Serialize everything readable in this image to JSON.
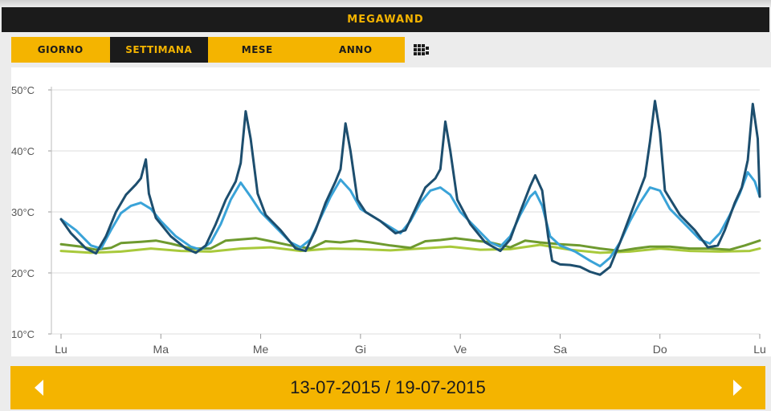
{
  "app": {
    "title": "MEGAWAND"
  },
  "tabs": [
    {
      "label": "GIORNO",
      "active": false
    },
    {
      "label": "SETTIMANA",
      "active": true
    },
    {
      "label": "MESE",
      "active": false
    },
    {
      "label": "ANNO",
      "active": false
    }
  ],
  "icons": {
    "grid": "grid-icon",
    "prev": "chevron-left-icon",
    "next": "chevron-right-icon"
  },
  "colors": {
    "accent": "#f4b400",
    "dark": "#1b1b1b"
  },
  "footer": {
    "date_range": "13-07-2015 / 19-07-2015"
  },
  "chart_data": {
    "type": "line",
    "title": "",
    "xlabel": "",
    "ylabel": "",
    "ylim": [
      10,
      50
    ],
    "yticks": [
      "10°C",
      "20°C",
      "30°C",
      "40°C",
      "50°C"
    ],
    "ytick_values": [
      10,
      20,
      30,
      40,
      50
    ],
    "xticks": [
      "Lu",
      "Ma",
      "Me",
      "Gi",
      "Ve",
      "Sa",
      "Do",
      "Lu"
    ],
    "xlim": [
      0,
      7
    ],
    "grid": true,
    "legend": "none",
    "series": [
      {
        "color": "#1d4e6e",
        "points": [
          [
            0,
            28.8
          ],
          [
            0.1,
            26.5
          ],
          [
            0.25,
            24
          ],
          [
            0.35,
            23.2
          ],
          [
            0.45,
            26
          ],
          [
            0.55,
            30
          ],
          [
            0.65,
            32.8
          ],
          [
            0.75,
            34.5
          ],
          [
            0.8,
            35.5
          ],
          [
            0.85,
            38.6
          ],
          [
            0.88,
            33
          ],
          [
            0.95,
            29
          ],
          [
            1.1,
            26
          ],
          [
            1.25,
            24
          ],
          [
            1.35,
            23.3
          ],
          [
            1.45,
            24.5
          ],
          [
            1.55,
            28
          ],
          [
            1.65,
            32
          ],
          [
            1.75,
            35
          ],
          [
            1.8,
            38
          ],
          [
            1.85,
            46.5
          ],
          [
            1.9,
            42
          ],
          [
            1.97,
            33
          ],
          [
            2.05,
            29.5
          ],
          [
            2.2,
            27
          ],
          [
            2.35,
            24
          ],
          [
            2.45,
            23.6
          ],
          [
            2.55,
            27
          ],
          [
            2.65,
            31.5
          ],
          [
            2.75,
            35
          ],
          [
            2.8,
            37
          ],
          [
            2.85,
            44.5
          ],
          [
            2.9,
            40
          ],
          [
            2.97,
            32
          ],
          [
            3.05,
            30
          ],
          [
            3.2,
            28.5
          ],
          [
            3.35,
            26.5
          ],
          [
            3.45,
            27
          ],
          [
            3.55,
            30.5
          ],
          [
            3.65,
            34
          ],
          [
            3.75,
            35.5
          ],
          [
            3.8,
            37
          ],
          [
            3.85,
            44.8
          ],
          [
            3.9,
            40
          ],
          [
            3.97,
            32
          ],
          [
            4.1,
            28
          ],
          [
            4.25,
            25
          ],
          [
            4.4,
            23.6
          ],
          [
            4.5,
            25.5
          ],
          [
            4.6,
            30
          ],
          [
            4.7,
            34.2
          ],
          [
            4.75,
            36
          ],
          [
            4.82,
            33.5
          ],
          [
            4.88,
            26
          ],
          [
            4.92,
            22
          ],
          [
            5.0,
            21.4
          ],
          [
            5.1,
            21.3
          ],
          [
            5.2,
            21.0
          ],
          [
            5.3,
            20.2
          ],
          [
            5.4,
            19.7
          ],
          [
            5.5,
            21
          ],
          [
            5.6,
            25
          ],
          [
            5.75,
            31.5
          ],
          [
            5.85,
            35.8
          ],
          [
            5.9,
            41.5
          ],
          [
            5.95,
            48.2
          ],
          [
            6.0,
            43
          ],
          [
            6.05,
            33.5
          ],
          [
            6.2,
            29.5
          ],
          [
            6.35,
            27
          ],
          [
            6.48,
            24.2
          ],
          [
            6.58,
            24.5
          ],
          [
            6.65,
            27
          ],
          [
            6.75,
            31.5
          ],
          [
            6.82,
            34
          ],
          [
            6.88,
            38.5
          ],
          [
            6.93,
            47.7
          ],
          [
            6.98,
            42
          ],
          [
            7.0,
            32.5
          ]
        ]
      },
      {
        "color": "#3aa3d8",
        "points": [
          [
            0,
            28.8
          ],
          [
            0.15,
            27
          ],
          [
            0.3,
            24.5
          ],
          [
            0.4,
            24
          ],
          [
            0.5,
            27
          ],
          [
            0.6,
            29.8
          ],
          [
            0.7,
            31
          ],
          [
            0.8,
            31.5
          ],
          [
            0.9,
            30.5
          ],
          [
            1.0,
            28.5
          ],
          [
            1.15,
            26
          ],
          [
            1.3,
            24.3
          ],
          [
            1.4,
            23.8
          ],
          [
            1.5,
            25
          ],
          [
            1.6,
            28
          ],
          [
            1.7,
            32
          ],
          [
            1.8,
            34.8
          ],
          [
            1.9,
            32.5
          ],
          [
            2.0,
            30
          ],
          [
            2.15,
            27.5
          ],
          [
            2.3,
            25
          ],
          [
            2.4,
            24.2
          ],
          [
            2.5,
            25.5
          ],
          [
            2.6,
            29
          ],
          [
            2.7,
            32.5
          ],
          [
            2.8,
            35.3
          ],
          [
            2.9,
            33.5
          ],
          [
            3.0,
            30.5
          ],
          [
            3.15,
            29
          ],
          [
            3.3,
            27.5
          ],
          [
            3.4,
            26.5
          ],
          [
            3.5,
            28.5
          ],
          [
            3.6,
            31.5
          ],
          [
            3.7,
            33.5
          ],
          [
            3.8,
            34
          ],
          [
            3.9,
            32.8
          ],
          [
            4.0,
            30
          ],
          [
            4.15,
            27.5
          ],
          [
            4.3,
            25
          ],
          [
            4.4,
            24.3
          ],
          [
            4.5,
            26
          ],
          [
            4.6,
            29.5
          ],
          [
            4.7,
            32.5
          ],
          [
            4.75,
            33.3
          ],
          [
            4.82,
            31
          ],
          [
            4.9,
            26
          ],
          [
            5.0,
            24.5
          ],
          [
            5.15,
            23.5
          ],
          [
            5.3,
            22
          ],
          [
            5.4,
            21.1
          ],
          [
            5.5,
            22.5
          ],
          [
            5.6,
            25
          ],
          [
            5.7,
            28.5
          ],
          [
            5.8,
            31.5
          ],
          [
            5.9,
            34
          ],
          [
            6.0,
            33.5
          ],
          [
            6.1,
            30.5
          ],
          [
            6.25,
            28
          ],
          [
            6.4,
            25.5
          ],
          [
            6.5,
            24.8
          ],
          [
            6.6,
            26.5
          ],
          [
            6.7,
            29.5
          ],
          [
            6.8,
            33
          ],
          [
            6.88,
            36.5
          ],
          [
            6.95,
            35
          ],
          [
            7.0,
            32.5
          ]
        ]
      },
      {
        "color": "#6e9a2f",
        "points": [
          [
            0,
            24.7
          ],
          [
            0.2,
            24.3
          ],
          [
            0.35,
            23.8
          ],
          [
            0.5,
            24.1
          ],
          [
            0.6,
            24.9
          ],
          [
            0.8,
            25.1
          ],
          [
            0.95,
            25.3
          ],
          [
            1.1,
            24.8
          ],
          [
            1.3,
            24
          ],
          [
            1.5,
            24
          ],
          [
            1.65,
            25.3
          ],
          [
            1.8,
            25.5
          ],
          [
            1.95,
            25.7
          ],
          [
            2.1,
            25.2
          ],
          [
            2.3,
            24.5
          ],
          [
            2.5,
            24
          ],
          [
            2.65,
            25.2
          ],
          [
            2.8,
            25
          ],
          [
            2.95,
            25.3
          ],
          [
            3.1,
            25
          ],
          [
            3.3,
            24.5
          ],
          [
            3.5,
            24.1
          ],
          [
            3.65,
            25.2
          ],
          [
            3.8,
            25.4
          ],
          [
            3.95,
            25.7
          ],
          [
            4.1,
            25.4
          ],
          [
            4.3,
            25
          ],
          [
            4.5,
            24.2
          ],
          [
            4.65,
            25.3
          ],
          [
            4.8,
            25
          ],
          [
            5.0,
            24.7
          ],
          [
            5.2,
            24.5
          ],
          [
            5.4,
            24
          ],
          [
            5.6,
            23.6
          ],
          [
            5.75,
            24
          ],
          [
            5.9,
            24.3
          ],
          [
            6.1,
            24.3
          ],
          [
            6.3,
            24
          ],
          [
            6.5,
            24
          ],
          [
            6.7,
            23.8
          ],
          [
            6.85,
            24.5
          ],
          [
            7.0,
            25.3
          ]
        ]
      },
      {
        "color": "#a8c93b",
        "points": [
          [
            0,
            23.6
          ],
          [
            0.3,
            23.3
          ],
          [
            0.6,
            23.5
          ],
          [
            0.9,
            24
          ],
          [
            1.2,
            23.6
          ],
          [
            1.5,
            23.5
          ],
          [
            1.8,
            24
          ],
          [
            2.1,
            24.2
          ],
          [
            2.4,
            23.6
          ],
          [
            2.7,
            24
          ],
          [
            3.0,
            23.9
          ],
          [
            3.3,
            23.7
          ],
          [
            3.6,
            24
          ],
          [
            3.9,
            24.3
          ],
          [
            4.2,
            23.8
          ],
          [
            4.5,
            23.9
          ],
          [
            4.8,
            24.6
          ],
          [
            5.1,
            23.8
          ],
          [
            5.4,
            23.3
          ],
          [
            5.7,
            23.5
          ],
          [
            6.0,
            24
          ],
          [
            6.3,
            23.6
          ],
          [
            6.6,
            23.5
          ],
          [
            6.9,
            23.6
          ],
          [
            7.0,
            24
          ]
        ]
      }
    ]
  }
}
